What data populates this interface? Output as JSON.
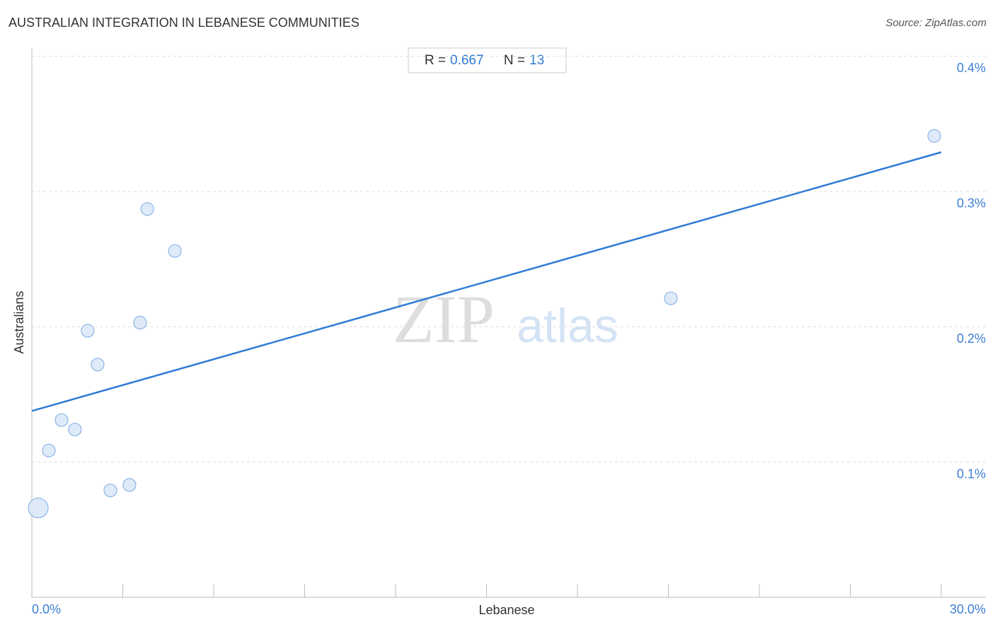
{
  "chart_data": {
    "type": "scatter",
    "title": "AUSTRALIAN INTEGRATION IN LEBANESE COMMUNITIES",
    "source": "Source: ZipAtlas.com",
    "x_label": "Lebanese",
    "y_label": "Australians",
    "watermark": [
      "ZIP",
      "atlas"
    ],
    "stats": {
      "r_label": "R =",
      "r": 0.667,
      "n_label": "N =",
      "n": 13
    },
    "x": [
      0.21,
      0.56,
      0.98,
      1.42,
      1.84,
      2.17,
      2.59,
      3.22,
      3.57,
      3.81,
      4.72,
      21.08,
      29.77
    ],
    "values": [
      0.066,
      0.1085,
      0.131,
      0.124,
      0.197,
      0.172,
      0.079,
      0.083,
      0.203,
      0.287,
      0.256,
      0.221,
      0.341
    ],
    "sizes": [
      14,
      9,
      9,
      9,
      9,
      9,
      9,
      9,
      9,
      9,
      9,
      9,
      9
    ],
    "color": "#dbe8f8",
    "edge_color": "#8db4e6",
    "trendline": {
      "x": [
        0,
        30
      ],
      "y": [
        0.1377,
        0.329
      ],
      "color": "#2f7bd6"
    },
    "xlim": [
      0,
      31.47
    ],
    "ylim": [
      0,
      0.406
    ],
    "xticks": [
      {
        "value": 0,
        "label": "0.0%"
      },
      {
        "value": 30,
        "label": "30.0%"
      }
    ],
    "xticks_minor": [
      3,
      6,
      9,
      12,
      15,
      18,
      21,
      24,
      27
    ],
    "yticks": [
      {
        "value": 0.1,
        "label": "0.1%"
      },
      {
        "value": 0.2,
        "label": "0.2%"
      },
      {
        "value": 0.3,
        "label": "0.3%"
      },
      {
        "value": 0.4,
        "label": "0.4%"
      }
    ],
    "grid": true
  }
}
